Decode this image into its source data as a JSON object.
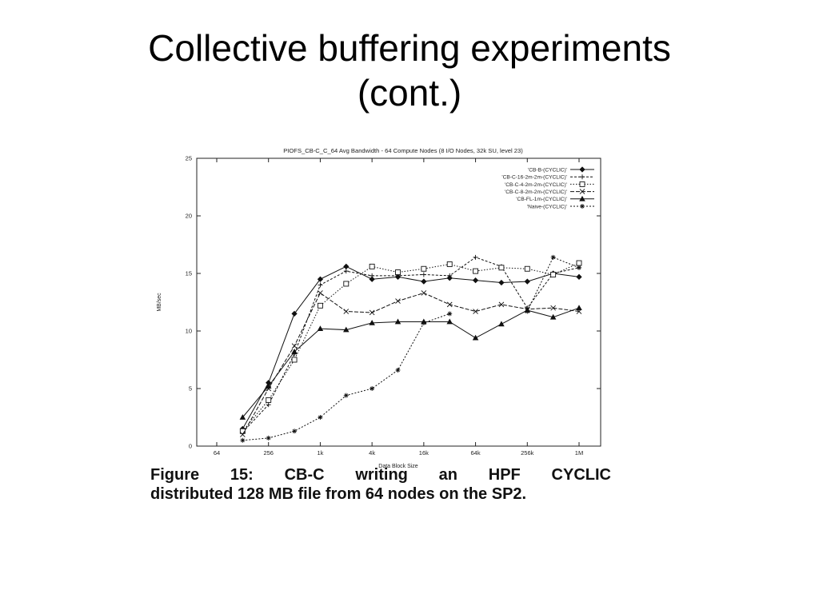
{
  "slide": {
    "title_line1": "Collective buffering experiments",
    "title_line2": "(cont.)"
  },
  "caption": {
    "line1": "Figure 15: CB-C writing an HPF CYCLIC",
    "line2": "distributed 128 MB file from 64 nodes on the SP2."
  },
  "chart_data": {
    "type": "line",
    "title": "PIOFS_CB-C_C_64 Avg Bandwidth - 64 Compute Nodes (8 I/O Nodes, 32k SU, level 23)",
    "xlabel": "Data Block Size",
    "ylabel": "MB/sec",
    "x_scale": "log2",
    "x_ticks": [
      "64",
      "256",
      "1k",
      "4k",
      "16k",
      "64k",
      "256k",
      "1M"
    ],
    "x": [
      "128",
      "256",
      "512",
      "1k",
      "2k",
      "4k",
      "8k",
      "16k",
      "32k",
      "64k",
      "128k",
      "256k",
      "512k",
      "1M"
    ],
    "ylim": [
      0,
      25
    ],
    "y_ticks": [
      0,
      5,
      10,
      15,
      20,
      25
    ],
    "grid": false,
    "legend_position": "top-right",
    "series": [
      {
        "name": "'CB-B-(CYCLIC)'",
        "marker": "diamond",
        "dash": "",
        "values": [
          1.5,
          5.5,
          11.5,
          14.5,
          15.6,
          14.5,
          14.7,
          14.3,
          14.6,
          14.4,
          14.2,
          14.3,
          15.0,
          14.7
        ]
      },
      {
        "name": "'CB-C-16-2m-2m-(CYCLIC)'",
        "marker": "plus",
        "dash": "3,2",
        "values": [
          1.2,
          3.6,
          8.0,
          14.0,
          15.2,
          14.8,
          14.8,
          14.9,
          14.8,
          16.4,
          15.6,
          12.0,
          15.0,
          15.5
        ]
      },
      {
        "name": "'CB-C-4-2m-2m-(CYCLIC)'",
        "marker": "square",
        "dash": "1.5,2",
        "values": [
          1.3,
          4.0,
          7.5,
          12.2,
          14.1,
          15.6,
          15.1,
          15.4,
          15.8,
          15.2,
          15.5,
          15.4,
          14.9,
          15.9
        ]
      },
      {
        "name": "'CB-C-8-2m-2m-(CYCLIC)'",
        "marker": "x",
        "dash": "5,2",
        "values": [
          1.0,
          5.0,
          8.7,
          13.3,
          11.7,
          11.6,
          12.6,
          13.3,
          12.3,
          11.7,
          12.3,
          11.9,
          12.0,
          11.7
        ]
      },
      {
        "name": "'CB-FL-1m-(CYCLIC)'",
        "marker": "triangle",
        "dash": "",
        "values": [
          2.5,
          5.2,
          8.2,
          10.2,
          10.1,
          10.7,
          10.8,
          10.8,
          10.8,
          9.4,
          10.6,
          11.8,
          11.2,
          12.0
        ]
      },
      {
        "name": "'Naive-(CYCLIC)'",
        "marker": "star",
        "dash": "2,2",
        "values": [
          0.5,
          0.7,
          1.3,
          2.5,
          4.4,
          5.0,
          6.6,
          10.7,
          11.5,
          null,
          null,
          11.7,
          16.4,
          15.5
        ]
      }
    ]
  }
}
